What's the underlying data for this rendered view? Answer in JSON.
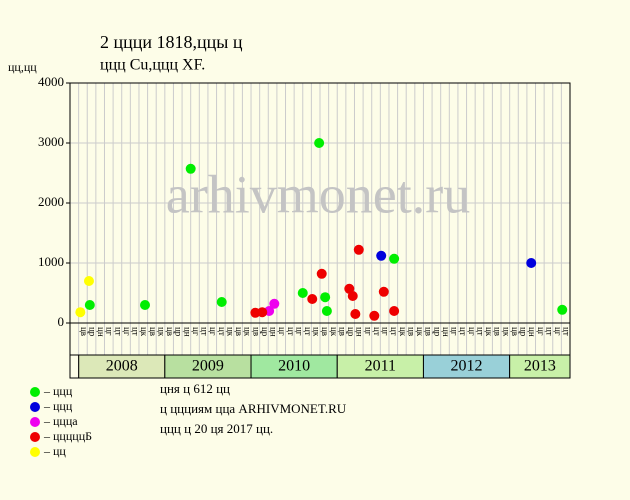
{
  "chart_data": {
    "type": "scatter",
    "title": "2 ццци 1818,ццы ц",
    "subtitle": "ццц Cu,ццц XF.",
    "y_label": "цц,цц",
    "watermark": "arhivmonet.ru",
    "xlim": [
      0,
      58
    ],
    "ylim": [
      0,
      4000
    ],
    "yticks": [
      0,
      1000,
      2000,
      3000,
      4000
    ],
    "grid": true,
    "categories": [
      null,
      "цв",
      "цр",
      "цн",
      "цг",
      "цт",
      "цг",
      "цт",
      "цк",
      "цв",
      "цк",
      "цв",
      "цр",
      "цн",
      "цг",
      "цт",
      "цг",
      "цт",
      "цк",
      "цв",
      "цк",
      "цв",
      "цр",
      "цн",
      "цг",
      "цт",
      "цг",
      "цт",
      "цк",
      "цв",
      "цк",
      "цв",
      "цр",
      "цн",
      "цг",
      "цт",
      "цг",
      "цт",
      "цк",
      "цв",
      "цк",
      "цв",
      "цр",
      "цн",
      "цг",
      "цт",
      "цг",
      "цт",
      "цк",
      "цв",
      "цк",
      "цв",
      "цр",
      "цн",
      "цг",
      "цт",
      "цг",
      "цт"
    ],
    "years": [
      "2008",
      "2009",
      "2010",
      "2011",
      "2012",
      "2013"
    ],
    "year_colors": [
      "#dce8b8",
      "#b8e0a0",
      "#a0e8a0",
      "#c8f0a8",
      "#99d0d8",
      "#c8f0a8"
    ],
    "series": [
      {
        "name": "– ццц",
        "color": "#00ee00",
        "x": [
          2.3,
          8.7,
          14.0,
          17.6,
          27.0,
          28.9,
          29.6,
          29.8,
          37.6,
          57.1
        ],
        "values": [
          300,
          300,
          2570,
          350,
          500,
          3000,
          430,
          200,
          1070,
          220
        ]
      },
      {
        "name": "– ццц",
        "color": "#0000dd",
        "x": [
          36.1,
          53.5
        ],
        "values": [
          1120,
          1000
        ]
      },
      {
        "name": "– ццца",
        "color": "#ee00ee",
        "x": [
          23.1,
          23.7
        ],
        "values": [
          200,
          320
        ]
      },
      {
        "name": "– цццццБ",
        "color": "#ee0000",
        "x": [
          21.5,
          22.3,
          28.1,
          29.2,
          32.4,
          32.8,
          33.1,
          33.5,
          35.3,
          36.4,
          37.6
        ],
        "values": [
          170,
          180,
          400,
          820,
          570,
          450,
          150,
          1220,
          120,
          520,
          200
        ]
      },
      {
        "name": "– цц",
        "color": "#ffff00",
        "x": [
          1.2,
          2.2
        ],
        "values": [
          180,
          700
        ]
      }
    ],
    "notes": [
      "цня ц 612 цц",
      "ц ццциям цца ARHIVMONET.RU",
      "ццц ц 20 ця 2017 цц."
    ]
  }
}
